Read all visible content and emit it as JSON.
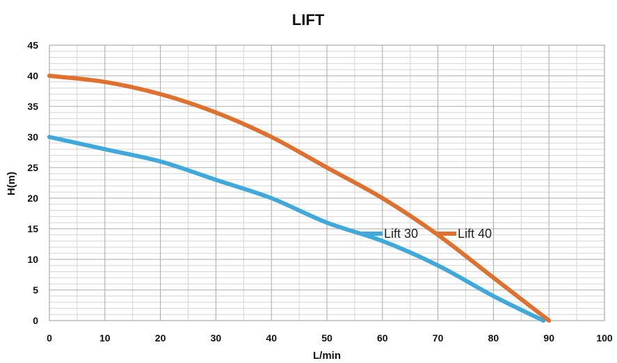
{
  "chart_data": {
    "type": "line",
    "title": "LIFT",
    "xlabel": "L/min",
    "ylabel": "H(m)",
    "xlim": [
      0,
      100
    ],
    "ylim": [
      0,
      45
    ],
    "x_ticks": [
      0,
      10,
      20,
      30,
      40,
      50,
      60,
      70,
      80,
      90,
      100
    ],
    "y_ticks": [
      0,
      5,
      10,
      15,
      20,
      25,
      30,
      35,
      40,
      45
    ],
    "grid": true,
    "legend_position": "inside-right",
    "series": [
      {
        "name": "Lift 30",
        "color": "#3fa9db",
        "x": [
          0,
          10,
          20,
          30,
          40,
          50,
          60,
          70,
          80,
          89
        ],
        "y": [
          30,
          28,
          26,
          23,
          20,
          16,
          13,
          9,
          4,
          0
        ]
      },
      {
        "name": "Lift 40",
        "color": "#e0702e",
        "x": [
          0,
          10,
          20,
          30,
          40,
          50,
          60,
          70,
          80,
          90
        ],
        "y": [
          40,
          39,
          37,
          34,
          30,
          25,
          20,
          14,
          7,
          0
        ]
      }
    ]
  }
}
